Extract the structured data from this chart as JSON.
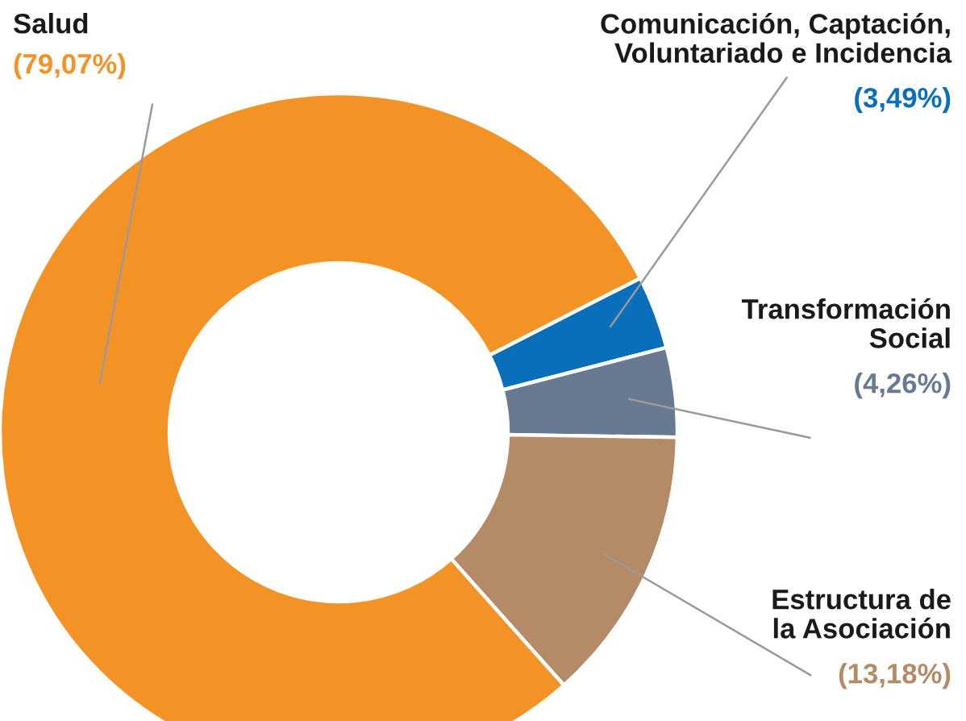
{
  "chart_data": {
    "type": "donut",
    "categories": [
      "Salud",
      "Comunicación, Captación,\nVoluntariado e Incidencia",
      "Transformación\nSocial",
      "Estructura de\nla Asociación"
    ],
    "values": [
      79.07,
      3.49,
      4.26,
      13.18
    ],
    "colors": [
      "#f39325",
      "#0a6fba",
      "#677a92",
      "#b58a66"
    ],
    "value_labels": [
      "(79,07%)",
      "(3,49%)",
      "(4,26%)",
      "(13,18%)"
    ],
    "legend": false
  }
}
